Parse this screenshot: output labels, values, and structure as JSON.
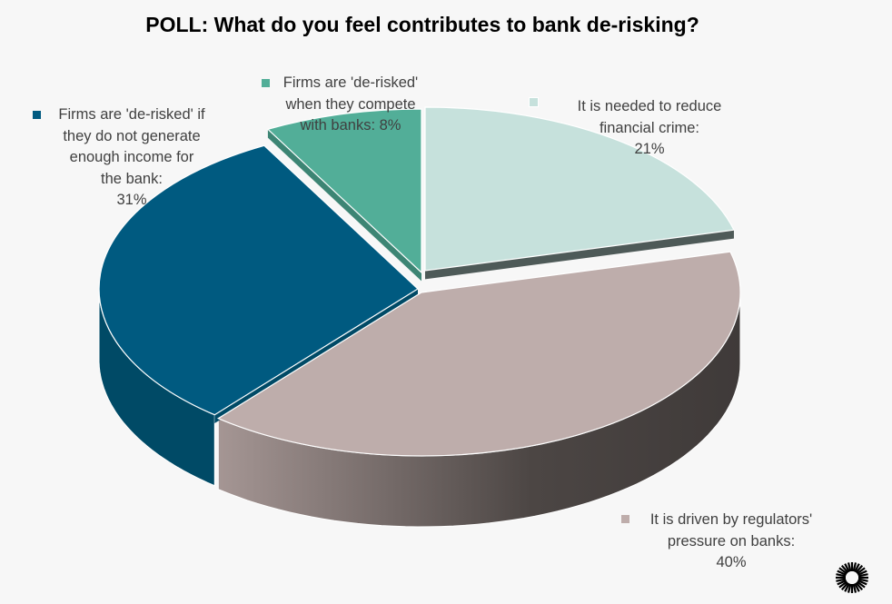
{
  "chart_data": {
    "type": "pie",
    "title": "POLL: What do you feel contributes to bank de-risking?",
    "slices": [
      {
        "label": "It is needed to reduce\nfinancial crime:",
        "value_label": "21%",
        "value": 21,
        "color": "#c6e1dc",
        "side_color": "#4e5a58"
      },
      {
        "label": "It is driven by regulators'\npressure on banks:",
        "value_label": "40%",
        "value": 40,
        "color": "#beadab",
        "side_color": "#4a4442"
      },
      {
        "label": "Firms are 'de-risked' if\nthey do not generate\nenough income for\nthe bank:",
        "value_label": "31%",
        "value": 31,
        "color": "#005a80",
        "side_color": "#004a66"
      },
      {
        "label": "Firms are 'de-risked'\nwhen they compete\nwith banks:",
        "value_label": "8%",
        "value": 8,
        "color": "#52ae98",
        "side_color": "#3d8574"
      }
    ]
  },
  "logo": {
    "name": "sunburst-logo-icon",
    "color": "#000000"
  }
}
